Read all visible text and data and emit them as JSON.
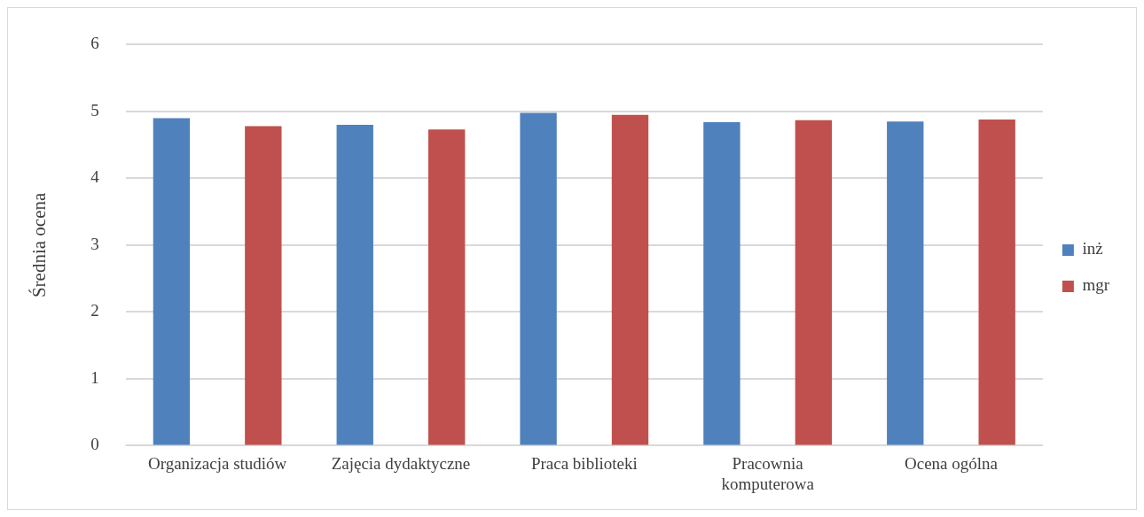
{
  "chart_data": {
    "type": "bar",
    "ylabel": "Średnia ocena",
    "categories": [
      "Organizacja studiów",
      "Zajęcia dydaktyczne",
      "Praca biblioteki",
      "Pracownia komputerowa",
      "Ocena ogólna"
    ],
    "series": [
      {
        "name": "inż",
        "color": "#4f81bd",
        "values": [
          4.9,
          4.8,
          4.98,
          4.84,
          4.85
        ]
      },
      {
        "name": "mgr",
        "color": "#c0504d",
        "values": [
          4.78,
          4.73,
          4.95,
          4.87,
          4.88
        ]
      }
    ],
    "ylim": [
      0,
      6
    ],
    "yticks": [
      0,
      1,
      2,
      3,
      4,
      5,
      6
    ],
    "grid": "y",
    "legend": "right"
  }
}
